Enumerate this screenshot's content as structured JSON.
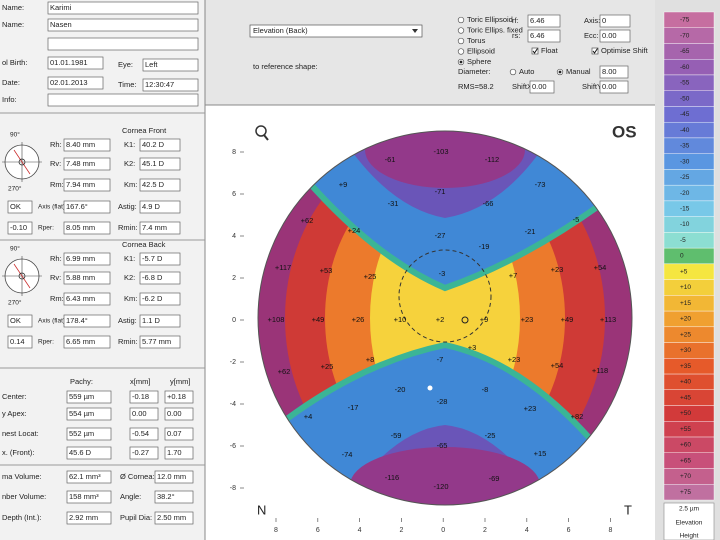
{
  "patient": {
    "name_label": "Name:",
    "name": "Karimi",
    "first_label": "Name:",
    "first": "Nasen",
    "birth_label": "ol Birth:",
    "birth": "01.01.1981",
    "eye_label": "Eye:",
    "eye": "Left",
    "date_label": "Date:",
    "date": "02.01.2013",
    "time_label": "Time:",
    "time": "12:30:47",
    "info_label": "Info:"
  },
  "front": {
    "title": "Cornea Front",
    "angle_top": "90°",
    "angle_bottom": "270°",
    "rows": [
      [
        "Rh:",
        "8.40 mm",
        "K1:",
        "40.2 D"
      ],
      [
        "Rv:",
        "7.48 mm",
        "K2:",
        "45.1 D"
      ],
      [
        "Rm:",
        "7.94 mm",
        "Km:",
        "42.5 D"
      ],
      [
        "OK",
        "Axis (flat):",
        "167.6°",
        "Astig:",
        "4.9 D"
      ],
      [
        "-0.10",
        "Rper:",
        "8.05 mm",
        "Rmin:",
        "7.4 mm"
      ]
    ]
  },
  "back": {
    "title": "Cornea Back",
    "angle_top": "90°",
    "angle_bottom": "270°",
    "rows": [
      [
        "Rh:",
        "6.99 mm",
        "K1:",
        "-5.7 D"
      ],
      [
        "Rv:",
        "5.88 mm",
        "K2:",
        "-6.8 D"
      ],
      [
        "Rm:",
        "6.43 mm",
        "Km:",
        "-6.2 D"
      ],
      [
        "OK",
        "Axis (flat):",
        "178.4°",
        "Astig:",
        "1.1 D"
      ],
      [
        "0.14",
        "Rper:",
        "6.65 mm",
        "Rmin:",
        "5.77 mm"
      ]
    ]
  },
  "pachy": {
    "headers": [
      "Pachy:",
      "x[mm]",
      "y[mm]"
    ],
    "rows": [
      [
        "Center:",
        "559 µm",
        "-0.18",
        "+0.18"
      ],
      [
        "y Apex:",
        "554 µm",
        "0.00",
        "0.00"
      ],
      [
        "nest Locat:",
        "552 µm",
        "-0.54",
        "0.07"
      ],
      [
        "x. (Front):",
        "45.6 D",
        "-0.27",
        "1.70"
      ]
    ],
    "volumes": [
      [
        "ma Volume:",
        "62.1 mm³",
        "Ø Cornea:",
        "12.0 mm"
      ],
      [
        "nber Volume:",
        "158 mm³",
        "Angle:",
        "38.2°"
      ],
      [
        "Depth (Int.):",
        "2.92 mm",
        "Pupil Dia:",
        "2.50 mm"
      ]
    ]
  },
  "controls": {
    "map_select": "Elevation (Back)",
    "ref_label": "to reference shape:",
    "shapes": [
      "Toric Ellipsoid",
      "Toric Ellips. fixed",
      "Torus",
      "Ellipsoid",
      "Sphere"
    ],
    "selected_shape": 4,
    "rf_label": "rf:",
    "rf": "6.46",
    "rs_label": "rs:",
    "rs": "6.46",
    "axis_label": "Axis:",
    "axis": "0",
    "ecc_label": "Ecc:",
    "ecc": "0.00",
    "float": "Float",
    "float_checked": true,
    "optimise": "Optimise Shift",
    "optimise_checked": true,
    "diameter_label": "Diameter:",
    "auto": "Auto",
    "manual": "Manual",
    "manual_selected": true,
    "diameter": "8.00",
    "rms": "RMS=58.2",
    "shiftx_label": "ShiftX",
    "shiftx": "0.00",
    "shifty_label": "ShiftY",
    "shifty": "0.00"
  },
  "map": {
    "eye": "OS",
    "nasal": "N",
    "temporal": "T",
    "yticks": [
      8,
      6,
      4,
      2,
      0,
      -2,
      -4,
      -6,
      -8
    ],
    "xticks": [
      8,
      6,
      4,
      2,
      0,
      2,
      4,
      6,
      8
    ],
    "labels": [
      "-103",
      "-112",
      "-61",
      "-73",
      "+9",
      "-71",
      "-31",
      "-66",
      "-5",
      "+62",
      "+24",
      "-27",
      "-21",
      "-19",
      "+117",
      "+53",
      "+25",
      "-3",
      "+7",
      "+23",
      "+54",
      "+108",
      "+49",
      "+26",
      "+10",
      "+2",
      "+9",
      "+23",
      "+49",
      "+113",
      "+3",
      "+8",
      "-7",
      "+23",
      "+62",
      "+25",
      "+54",
      "+118",
      "-20",
      "-8",
      "-28",
      "+4",
      "-17",
      "+23",
      "+82",
      "-59",
      "-65",
      "-25",
      "-74",
      "+15",
      "-116",
      "-120",
      "-69"
    ]
  },
  "scale": {
    "labels": [
      "-75",
      "-70",
      "-65",
      "-60",
      "-55",
      "-50",
      "-45",
      "-40",
      "-35",
      "-30",
      "-25",
      "-20",
      "-15",
      "-10",
      "-5",
      "0",
      "+5",
      "+10",
      "+15",
      "+20",
      "+25",
      "+30",
      "+35",
      "+40",
      "+45",
      "+50",
      "+55",
      "+60",
      "+65",
      "+70",
      "+75"
    ],
    "step": "2.5 µm",
    "mode": "Elevation",
    "kind": "Height"
  }
}
